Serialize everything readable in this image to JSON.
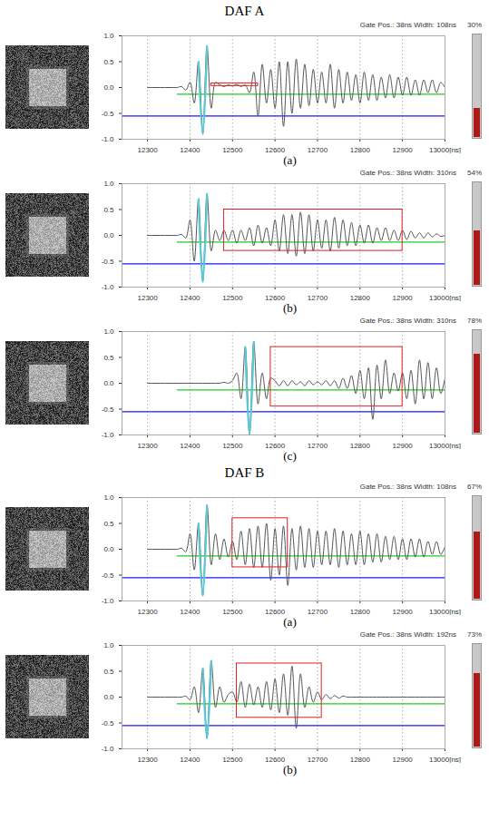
{
  "chart_data": [
    {
      "type": "line",
      "group": "DAF A",
      "label": "(a)",
      "header": "Gate Pos.: 38ns   Width: 108ns",
      "gauge": {
        "value": 30,
        "label": "30%"
      },
      "xlim": [
        12240,
        13000
      ],
      "ylim": [
        -1,
        1
      ],
      "xticks": [
        12300,
        12400,
        12500,
        12600,
        12700,
        12800,
        12900,
        {
          "value": 13000,
          "label": "13000[ns]"
        }
      ],
      "yticks": [
        {
          "value": -1,
          "label": "-1.0"
        },
        -0.5,
        {
          "value": 0,
          "label": "0.0"
        },
        0.5,
        {
          "value": 1,
          "label": "1.0"
        }
      ],
      "grid": true,
      "color": "#555555",
      "x": [
        12300,
        12310,
        12320,
        12330,
        12340,
        12350,
        12360,
        12370,
        12380,
        12390,
        12400,
        12410,
        12420,
        12430,
        12440,
        12450,
        12460,
        12470,
        12480,
        12490,
        12500,
        12510,
        12520,
        12530,
        12540,
        12550,
        12560,
        12570,
        12580,
        12590,
        12600,
        12610,
        12620,
        12630,
        12640,
        12650,
        12660,
        12670,
        12680,
        12690,
        12700,
        12710,
        12720,
        12730,
        12740,
        12750,
        12760,
        12770,
        12780,
        12790,
        12800,
        12810,
        12820,
        12830,
        12840,
        12850,
        12860,
        12870,
        12880,
        12890,
        12900,
        12910,
        12920,
        12930,
        12940,
        12950,
        12960,
        12970,
        12980,
        12990,
        13000
      ],
      "values": [
        0,
        0,
        0,
        0,
        0,
        0,
        0,
        0,
        0.02,
        -0.05,
        0.1,
        -0.3,
        0.5,
        -0.9,
        0.8,
        -0.4,
        0.1,
        0.05,
        0.02,
        0.05,
        0.03,
        0.06,
        0.02,
        0.05,
        -0.1,
        0.3,
        -0.55,
        0.45,
        -0.3,
        0.35,
        -0.4,
        0.5,
        -0.75,
        0.5,
        -0.5,
        0.55,
        -0.4,
        0.45,
        -0.35,
        0.35,
        -0.3,
        0.3,
        -0.3,
        0.45,
        -0.4,
        0.35,
        -0.3,
        0.3,
        -0.25,
        0.25,
        -0.3,
        0.3,
        -0.25,
        0.25,
        -0.25,
        0.2,
        -0.2,
        0.25,
        -0.2,
        0.2,
        -0.15,
        0.2,
        -0.15,
        0.15,
        -0.15,
        0.15,
        -0.1,
        0.15,
        -0.1,
        0.1,
        0
      ],
      "echo": {
        "x": [
          12420,
          12440
        ],
        "color": "#5bc8d8"
      },
      "gate": {
        "x": [
          12450,
          12560
        ],
        "y": [
          0.03,
          0.08
        ],
        "color": "#e02020"
      },
      "levels": [
        {
          "value": -0.13,
          "x": [
            12370,
            13000
          ],
          "color": "#22cc22"
        },
        {
          "value": -0.55,
          "x": [
            12240,
            13000
          ],
          "color": "#1a1aff"
        }
      ]
    },
    {
      "type": "line",
      "group": "DAF A",
      "label": "(b)",
      "header": "Gate Pos.: 38ns   Width: 310ns",
      "gauge": {
        "value": 54,
        "label": "54%"
      },
      "xlim": [
        12240,
        13000
      ],
      "ylim": [
        -1,
        1
      ],
      "xticks": [
        12300,
        12400,
        12500,
        12600,
        12700,
        12800,
        12900,
        {
          "value": 13000,
          "label": "13000[ns]"
        }
      ],
      "yticks": [
        {
          "value": -1,
          "label": "-1.0"
        },
        -0.5,
        {
          "value": 0,
          "label": "0.0"
        },
        0.5,
        {
          "value": 1,
          "label": "1.0"
        }
      ],
      "grid": true,
      "color": "#555555",
      "x": [
        12300,
        12310,
        12320,
        12330,
        12340,
        12350,
        12360,
        12370,
        12380,
        12390,
        12400,
        12410,
        12420,
        12430,
        12440,
        12450,
        12460,
        12470,
        12480,
        12490,
        12500,
        12510,
        12520,
        12530,
        12540,
        12550,
        12560,
        12570,
        12580,
        12590,
        12600,
        12610,
        12620,
        12630,
        12640,
        12650,
        12660,
        12670,
        12680,
        12690,
        12700,
        12710,
        12720,
        12730,
        12740,
        12750,
        12760,
        12770,
        12780,
        12790,
        12800,
        12810,
        12820,
        12830,
        12840,
        12850,
        12860,
        12870,
        12880,
        12890,
        12900,
        12910,
        12920,
        12930,
        12940,
        12950,
        12960,
        12970,
        12980,
        12990,
        13000
      ],
      "values": [
        0,
        0,
        0,
        0,
        0,
        0,
        0,
        0,
        0.02,
        -0.05,
        0.3,
        -0.5,
        0.7,
        -0.9,
        0.8,
        -0.3,
        0.1,
        -0.1,
        0.1,
        -0.1,
        0.1,
        -0.15,
        0.1,
        -0.1,
        0.15,
        -0.2,
        0.2,
        -0.15,
        0.15,
        -0.2,
        0.3,
        -0.3,
        0.4,
        -0.35,
        0.4,
        -0.4,
        0.45,
        -0.35,
        0.4,
        -0.3,
        0.3,
        -0.25,
        0.3,
        -0.3,
        0.35,
        -0.25,
        0.3,
        -0.2,
        0.25,
        -0.2,
        0.2,
        -0.15,
        0.2,
        -0.15,
        0.15,
        -0.1,
        0.15,
        -0.1,
        0.1,
        -0.1,
        0.1,
        -0.08,
        0.08,
        -0.05,
        0.05,
        -0.05,
        0.05,
        -0.03,
        0.03,
        -0.02,
        0
      ],
      "echo": {
        "x": [
          12420,
          12440
        ],
        "color": "#5bc8d8"
      },
      "gate": {
        "x": [
          12480,
          12900
        ],
        "y": [
          -0.3,
          0.5
        ],
        "color": "#e02020"
      },
      "levels": [
        {
          "value": -0.13,
          "x": [
            12370,
            13000
          ],
          "color": "#22cc22"
        },
        {
          "value": -0.55,
          "x": [
            12240,
            13000
          ],
          "color": "#1a1aff"
        }
      ]
    },
    {
      "type": "line",
      "group": "DAF A",
      "label": "(c)",
      "header": "Gate Pos.: 38ns   Width: 310ns",
      "gauge": {
        "value": 78,
        "label": "78%"
      },
      "xlim": [
        12240,
        13000
      ],
      "ylim": [
        -1,
        1
      ],
      "xticks": [
        12300,
        12400,
        12500,
        12600,
        12700,
        12800,
        12900,
        {
          "value": 13000,
          "label": "13000[ns]"
        }
      ],
      "yticks": [
        {
          "value": -1,
          "label": "-1.0"
        },
        -0.5,
        {
          "value": 0,
          "label": "0.0"
        },
        0.5,
        {
          "value": 1,
          "label": "1.0"
        }
      ],
      "grid": true,
      "color": "#555555",
      "x": [
        12300,
        12310,
        12320,
        12330,
        12340,
        12350,
        12360,
        12370,
        12380,
        12390,
        12400,
        12410,
        12420,
        12430,
        12440,
        12450,
        12460,
        12470,
        12480,
        12490,
        12500,
        12510,
        12520,
        12530,
        12540,
        12550,
        12560,
        12570,
        12580,
        12590,
        12600,
        12610,
        12620,
        12630,
        12640,
        12650,
        12660,
        12670,
        12680,
        12690,
        12700,
        12710,
        12720,
        12730,
        12740,
        12750,
        12760,
        12770,
        12780,
        12790,
        12800,
        12810,
        12820,
        12830,
        12840,
        12850,
        12860,
        12870,
        12880,
        12890,
        12900,
        12910,
        12920,
        12930,
        12940,
        12950,
        12960,
        12970,
        12980,
        12990,
        13000
      ],
      "values": [
        0,
        0,
        0,
        0,
        0,
        0,
        0,
        0,
        0,
        0,
        0,
        0,
        0,
        0,
        0,
        0,
        0,
        0,
        0.02,
        0,
        0.05,
        0.2,
        -0.3,
        0.7,
        -1.0,
        0.8,
        -0.4,
        0.2,
        -0.3,
        0.1,
        0.05,
        -0.05,
        0.05,
        -0.05,
        0.05,
        -0.03,
        0.03,
        -0.05,
        0.05,
        -0.03,
        0.03,
        -0.03,
        0.05,
        -0.05,
        0.05,
        -0.1,
        0.1,
        -0.1,
        0.15,
        -0.2,
        0.25,
        -0.3,
        0.3,
        -0.7,
        0.35,
        -0.3,
        0.45,
        -0.2,
        0.2,
        -0.15,
        0.2,
        -0.3,
        0.25,
        -0.4,
        0.45,
        -0.3,
        0.4,
        -0.3,
        0.3,
        -0.2,
        0.1
      ],
      "echo": {
        "x": [
          12530,
          12550
        ],
        "color": "#5bc8d8"
      },
      "gate": {
        "x": [
          12590,
          12900
        ],
        "y": [
          -0.45,
          0.7
        ],
        "color": "#e02020"
      },
      "levels": [
        {
          "value": -0.13,
          "x": [
            12370,
            13000
          ],
          "color": "#22cc22"
        },
        {
          "value": -0.55,
          "x": [
            12240,
            13000
          ],
          "color": "#1a1aff"
        }
      ]
    },
    {
      "type": "line",
      "group": "DAF B",
      "label": "(a)",
      "header": "Gate Pos.: 38ns   Width: 108ns",
      "gauge": {
        "value": 67,
        "label": "67%"
      },
      "xlim": [
        12240,
        13000
      ],
      "ylim": [
        -1,
        1
      ],
      "xticks": [
        12300,
        12400,
        12500,
        12600,
        12700,
        12800,
        12900,
        {
          "value": 13000,
          "label": "13000[ns]"
        }
      ],
      "yticks": [
        {
          "value": -1,
          "label": "-1.0"
        },
        -0.5,
        {
          "value": 0,
          "label": "0.0"
        },
        0.5,
        {
          "value": 1,
          "label": "1.0"
        }
      ],
      "grid": true,
      "color": "#555555",
      "x": [
        12300,
        12310,
        12320,
        12330,
        12340,
        12350,
        12360,
        12370,
        12380,
        12390,
        12400,
        12410,
        12420,
        12430,
        12440,
        12450,
        12460,
        12470,
        12480,
        12490,
        12500,
        12510,
        12520,
        12530,
        12540,
        12550,
        12560,
        12570,
        12580,
        12590,
        12600,
        12610,
        12620,
        12630,
        12640,
        12650,
        12660,
        12670,
        12680,
        12690,
        12700,
        12710,
        12720,
        12730,
        12740,
        12750,
        12760,
        12770,
        12780,
        12790,
        12800,
        12810,
        12820,
        12830,
        12840,
        12850,
        12860,
        12870,
        12880,
        12890,
        12900,
        12910,
        12920,
        12930,
        12940,
        12950,
        12960,
        12970,
        12980,
        12990,
        13000
      ],
      "values": [
        0,
        0,
        0,
        0,
        0,
        0,
        0,
        0,
        0.02,
        -0.05,
        0.3,
        -0.4,
        0.5,
        -0.9,
        0.85,
        -0.3,
        0.3,
        -0.2,
        0.2,
        -0.15,
        0.15,
        -0.2,
        0.35,
        -0.3,
        0.4,
        -0.35,
        0.45,
        -0.35,
        0.5,
        -0.6,
        0.4,
        -0.5,
        0.45,
        -0.7,
        0.4,
        -0.4,
        0.45,
        -0.35,
        0.4,
        -0.35,
        0.35,
        -0.3,
        0.35,
        -0.3,
        0.4,
        -0.35,
        0.35,
        -0.3,
        0.3,
        -0.3,
        0.35,
        -0.3,
        0.3,
        -0.25,
        0.3,
        -0.25,
        0.25,
        -0.2,
        0.25,
        -0.2,
        0.2,
        -0.2,
        0.2,
        -0.15,
        0.2,
        -0.15,
        0.15,
        -0.1,
        0.15,
        -0.1,
        0.05
      ],
      "echo": {
        "x": [
          12420,
          12440
        ],
        "color": "#5bc8d8"
      },
      "gate": {
        "x": [
          12500,
          12630
        ],
        "y": [
          -0.35,
          0.6
        ],
        "color": "#e02020"
      },
      "levels": [
        {
          "value": -0.13,
          "x": [
            12370,
            13000
          ],
          "color": "#22cc22"
        },
        {
          "value": -0.55,
          "x": [
            12240,
            13000
          ],
          "color": "#1a1aff"
        }
      ]
    },
    {
      "type": "line",
      "group": "DAF B",
      "label": "(b)",
      "header": "Gate Pos.: 38ns   Width: 192ns",
      "gauge": {
        "value": 73,
        "label": "73%"
      },
      "xlim": [
        12240,
        13000
      ],
      "ylim": [
        -1,
        1
      ],
      "xticks": [
        12300,
        12400,
        12500,
        12600,
        12700,
        12800,
        12900,
        {
          "value": 13000,
          "label": "13000[ns]"
        }
      ],
      "yticks": [
        {
          "value": -1,
          "label": "-1.0"
        },
        -0.5,
        {
          "value": 0,
          "label": "0.0"
        },
        0.5,
        {
          "value": 1,
          "label": "1.0"
        }
      ],
      "grid": true,
      "color": "#555555",
      "x": [
        12300,
        12310,
        12320,
        12330,
        12340,
        12350,
        12360,
        12370,
        12380,
        12390,
        12400,
        12410,
        12420,
        12430,
        12440,
        12450,
        12460,
        12470,
        12480,
        12490,
        12500,
        12510,
        12520,
        12530,
        12540,
        12550,
        12560,
        12570,
        12580,
        12590,
        12600,
        12610,
        12620,
        12630,
        12640,
        12650,
        12660,
        12670,
        12680,
        12690,
        12700,
        12710,
        12720,
        12730,
        12740,
        12750,
        12760,
        12770,
        12780,
        12790,
        12800,
        12810,
        12820,
        12830,
        12840,
        12850,
        12860,
        12870,
        12880,
        12890,
        12900,
        12910,
        12920,
        12930,
        12940,
        12950,
        12960,
        12970,
        12980,
        12990,
        13000
      ],
      "values": [
        0,
        0,
        0,
        0,
        0,
        0,
        0,
        0,
        0,
        0.02,
        -0.05,
        0.2,
        -0.3,
        0.55,
        -0.8,
        0.7,
        -0.2,
        0.2,
        -0.1,
        0.05,
        0.1,
        -0.1,
        0.3,
        -0.2,
        0.25,
        -0.15,
        0.2,
        -0.2,
        0.3,
        -0.25,
        0.35,
        -0.3,
        0.45,
        -0.35,
        0.6,
        -0.6,
        0.45,
        -0.2,
        0.2,
        -0.1,
        0.1,
        -0.05,
        0.05,
        -0.03,
        0.03,
        -0.02,
        0.02,
        0,
        0,
        0,
        0,
        0,
        0,
        0,
        0,
        0,
        0,
        0,
        0,
        0,
        0,
        0,
        0,
        0,
        0,
        0,
        0,
        0,
        0,
        0,
        0
      ],
      "echo": {
        "x": [
          12430,
          12450
        ],
        "color": "#5bc8d8"
      },
      "gate": {
        "x": [
          12510,
          12710
        ],
        "y": [
          -0.4,
          0.65
        ],
        "color": "#e02020"
      },
      "levels": [
        {
          "value": -0.13,
          "x": [
            12370,
            13000
          ],
          "color": "#22cc22"
        },
        {
          "value": -0.55,
          "x": [
            12240,
            13000
          ],
          "color": "#1a1aff"
        }
      ]
    }
  ]
}
